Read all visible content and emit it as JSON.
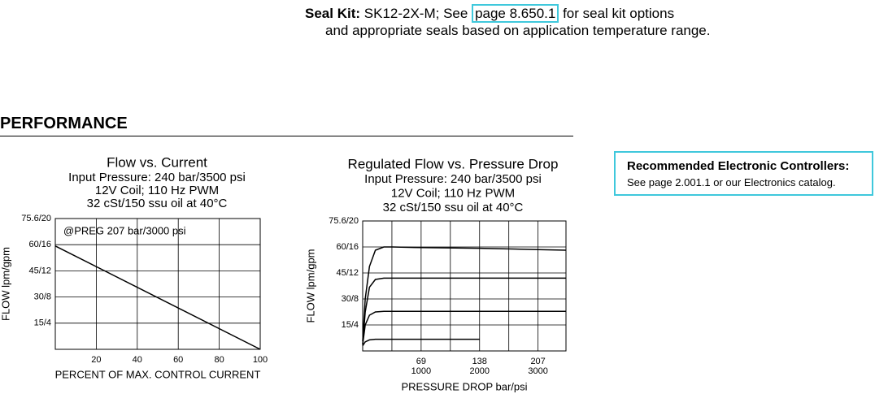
{
  "seal_kit": {
    "label": "Seal Kit:",
    "text_before": "SK12-2X-M; See",
    "link": "page 8.650.1",
    "text_after": "for seal kit options",
    "line2": "and appropriate seals based on application temperature range."
  },
  "section_title": "PERFORMANCE",
  "controllers": {
    "title": "Recommended Electronic Controllers:",
    "text": "See page 2.001.1 or our Electronics catalog."
  },
  "chart_data": [
    {
      "type": "line",
      "title": "Flow vs. Current",
      "subtitles": [
        "Input Pressure: 240 bar/3500 psi",
        "12V Coil; 110 Hz PWM",
        "32 cSt/150 ssu oil at 40°C"
      ],
      "annotation": "@PREG 207 bar/3000 psi",
      "xlabel": "PERCENT OF MAX. CONTROL CURRENT",
      "ylabel": "FLOW lpm/gpm",
      "xlim": [
        0,
        100
      ],
      "ylim": [
        0,
        20
      ],
      "xticks": [
        20,
        40,
        60,
        80,
        100
      ],
      "yticks": [
        {
          "value": 4,
          "label": "15/4"
        },
        {
          "value": 8,
          "label": "30/8"
        },
        {
          "value": 12,
          "label": "45/12"
        },
        {
          "value": 16,
          "label": "60/16"
        },
        {
          "value": 20,
          "label": "75.6/20"
        }
      ],
      "grid": true,
      "series": [
        {
          "color": "#000000",
          "x": [
            0,
            100
          ],
          "values": [
            15.8,
            0
          ]
        }
      ]
    },
    {
      "type": "line",
      "title": "Regulated Flow vs. Pressure Drop",
      "subtitles": [
        "Input Pressure: 240 bar/3500 psi",
        "12V Coil; 110 Hz PWM",
        "32 cSt/150 ssu oil at 40°C"
      ],
      "xlabel": "PRESSURE DROP bar/psi",
      "ylabel": "FLOW lpm/gpm",
      "xlim": [
        0,
        240
      ],
      "ylim": [
        0,
        20
      ],
      "xticks": [
        69,
        138,
        207
      ],
      "xticks2": [
        {
          "value": 69,
          "label": "1000"
        },
        {
          "value": 138,
          "label": "2000"
        },
        {
          "value": 207,
          "label": "3000"
        }
      ],
      "xgrid": [
        34.5,
        69,
        103.5,
        138,
        172.5,
        207
      ],
      "yticks": [
        {
          "value": 4,
          "label": "15/4"
        },
        {
          "value": 8,
          "label": "30/8"
        },
        {
          "value": 12,
          "label": "45/12"
        },
        {
          "value": 16,
          "label": "60/16"
        },
        {
          "value": 20,
          "label": "75.6/20"
        }
      ],
      "grid": true,
      "series": [
        {
          "color": "#000000",
          "x": [
            0,
            3,
            8,
            15,
            25,
            35,
            69,
            138,
            207,
            240
          ],
          "values": [
            1.5,
            8,
            13,
            15.5,
            16,
            16,
            15.9,
            15.8,
            15.6,
            15.5
          ]
        },
        {
          "color": "#000000",
          "x": [
            0,
            3,
            8,
            15,
            25,
            240
          ],
          "values": [
            1,
            6,
            9.8,
            11,
            11.2,
            11.2
          ]
        },
        {
          "color": "#000000",
          "x": [
            0,
            3,
            8,
            15,
            25,
            240
          ],
          "values": [
            1,
            4,
            5.5,
            6,
            6.1,
            6.1
          ]
        },
        {
          "color": "#000000",
          "x": [
            0,
            3,
            8,
            15,
            138
          ],
          "values": [
            0.8,
            1.4,
            1.7,
            1.8,
            1.8
          ]
        }
      ]
    }
  ]
}
